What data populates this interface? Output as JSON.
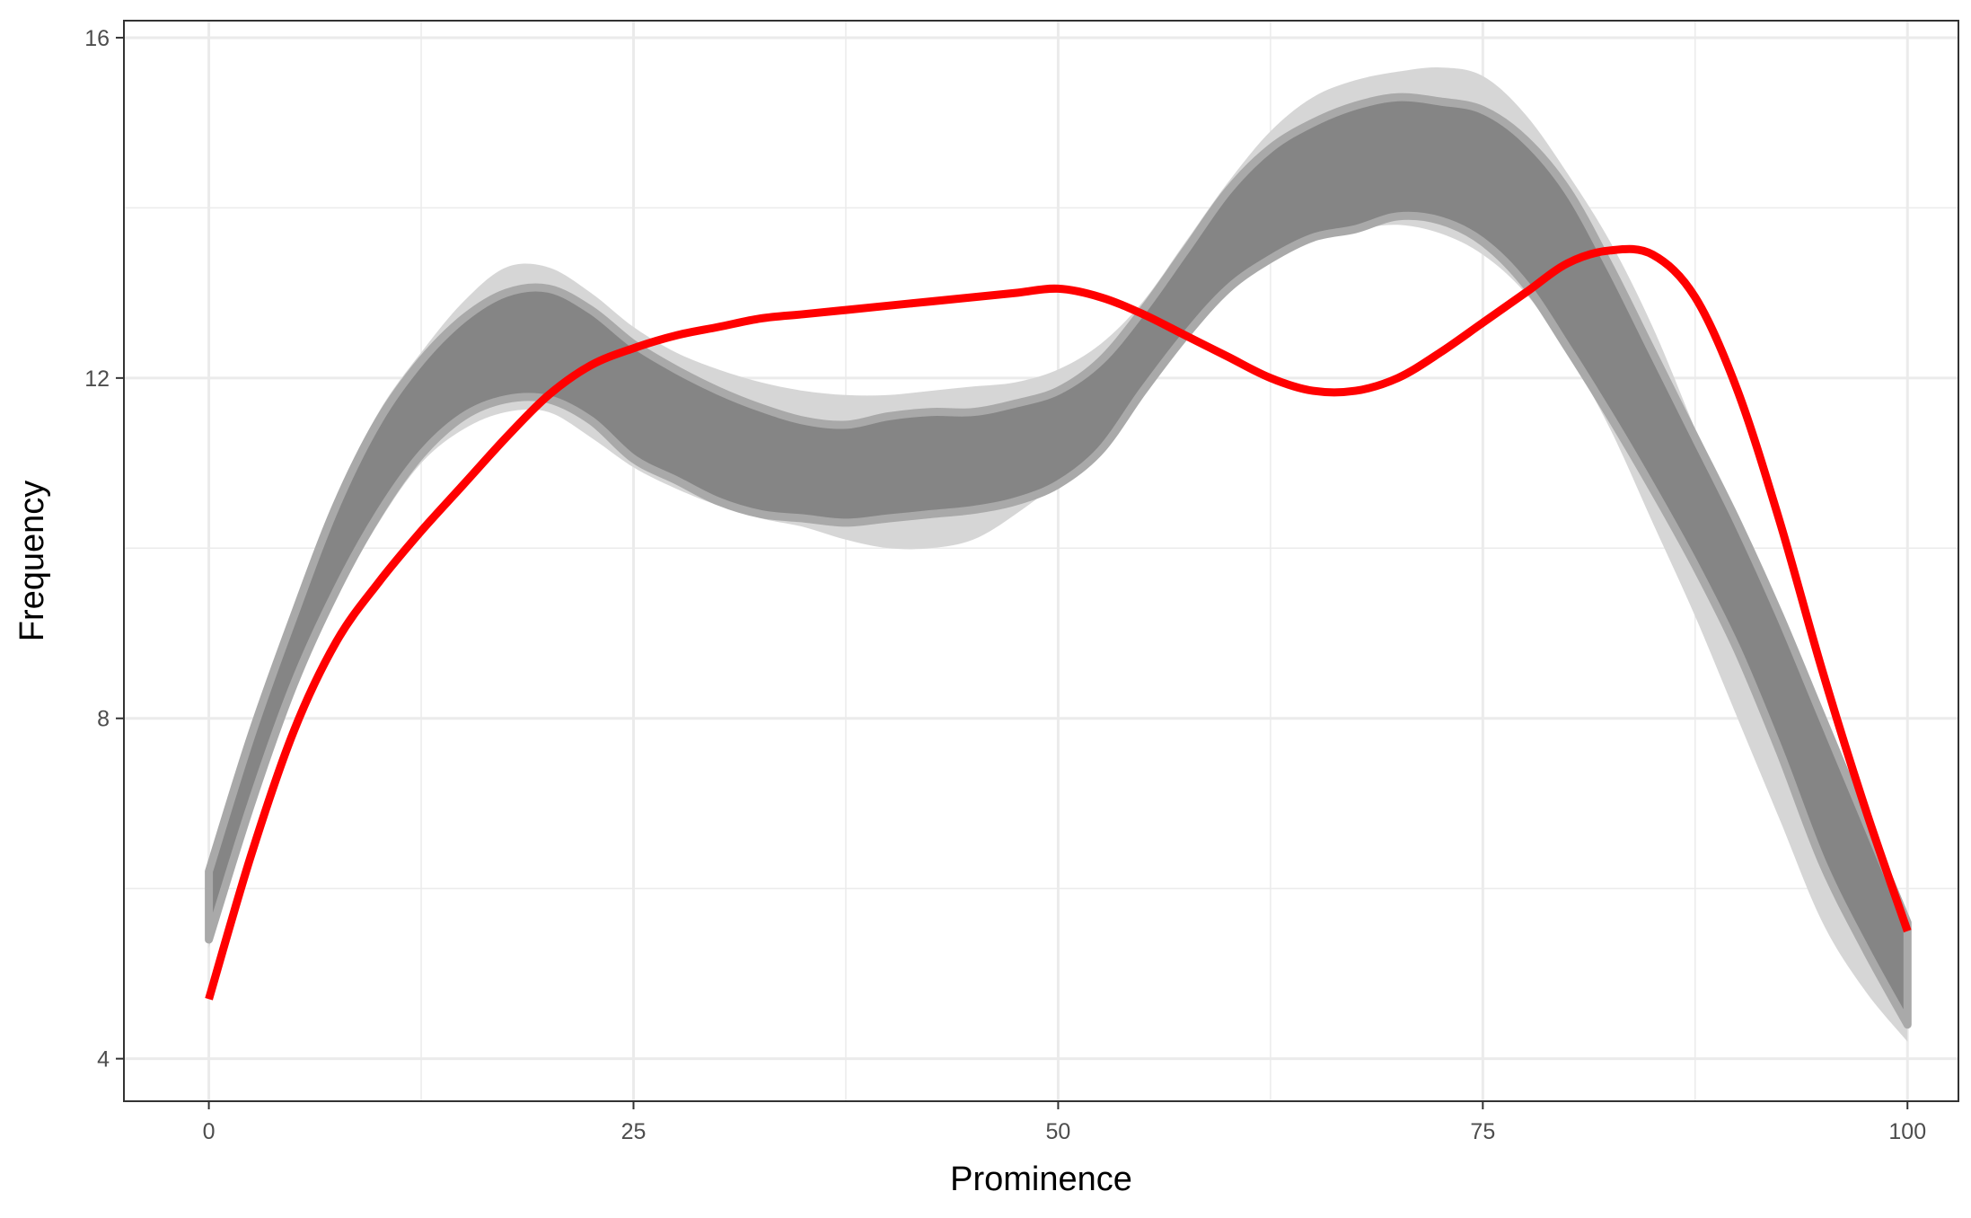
{
  "chart_data": {
    "type": "line",
    "title": "",
    "xlabel": "Prominence",
    "ylabel": "Frequency",
    "xlim": [
      -5,
      103
    ],
    "ylim": [
      3.5,
      16.2
    ],
    "x_ticks": [
      0,
      25,
      50,
      75,
      100
    ],
    "x_tick_labels": [
      "0",
      "25",
      "50",
      "75",
      "100"
    ],
    "y_ticks": [
      4,
      8,
      12,
      16
    ],
    "y_tick_labels": [
      "4",
      "8",
      "12",
      "16"
    ],
    "grid": true,
    "legend": "none",
    "colors": {
      "outer_band": "#d6d6d6",
      "band_edge": "#a9a9a9",
      "inner_band": "#858585",
      "red_line": "#ff0000",
      "panel_border": "#333333",
      "grid": "#ebebeb"
    },
    "x": [
      0,
      2.5,
      5,
      7.5,
      10,
      12.5,
      15,
      17.5,
      20,
      22.5,
      25,
      27.5,
      30,
      32.5,
      35,
      37.5,
      40,
      42.5,
      45,
      47.5,
      50,
      52.5,
      55,
      57.5,
      60,
      62.5,
      65,
      67.5,
      70,
      72.5,
      75,
      77.5,
      80,
      82.5,
      85,
      87.5,
      90,
      92.5,
      95,
      97.5,
      100
    ],
    "series": [
      {
        "name": "",
        "role": "outer-band",
        "upper": [
          6.3,
          7.9,
          9.3,
          10.6,
          11.6,
          12.3,
          12.9,
          13.3,
          13.3,
          13.0,
          12.6,
          12.3,
          12.1,
          11.95,
          11.85,
          11.8,
          11.8,
          11.85,
          11.9,
          11.95,
          12.1,
          12.4,
          12.9,
          13.6,
          14.3,
          14.9,
          15.3,
          15.5,
          15.6,
          15.65,
          15.55,
          15.1,
          14.4,
          13.6,
          12.6,
          11.4,
          10.2,
          9.0,
          7.8,
          6.6,
          5.4
        ],
        "lower": [
          5.3,
          6.9,
          8.3,
          9.4,
          10.3,
          11.0,
          11.4,
          11.6,
          11.6,
          11.3,
          10.95,
          10.7,
          10.5,
          10.35,
          10.25,
          10.1,
          10.0,
          10.0,
          10.1,
          10.4,
          10.8,
          11.4,
          12.2,
          12.9,
          13.4,
          13.6,
          13.7,
          13.75,
          13.8,
          13.7,
          13.45,
          13.0,
          12.3,
          11.4,
          10.3,
          9.2,
          8.0,
          6.8,
          5.6,
          4.8,
          4.2
        ]
      },
      {
        "name": "",
        "role": "inner-band",
        "upper": [
          6.2,
          7.8,
          9.2,
          10.5,
          11.5,
          12.2,
          12.7,
          13.0,
          13.05,
          12.8,
          12.4,
          12.1,
          11.85,
          11.65,
          11.5,
          11.45,
          11.55,
          11.6,
          11.6,
          11.7,
          11.85,
          12.2,
          12.8,
          13.5,
          14.2,
          14.7,
          15.0,
          15.2,
          15.3,
          15.25,
          15.15,
          14.8,
          14.2,
          13.3,
          12.3,
          11.3,
          10.3,
          9.2,
          8.0,
          6.8,
          5.6
        ],
        "lower": [
          5.4,
          7.0,
          8.4,
          9.5,
          10.4,
          11.1,
          11.55,
          11.75,
          11.75,
          11.5,
          11.05,
          10.8,
          10.55,
          10.4,
          10.35,
          10.3,
          10.35,
          10.4,
          10.45,
          10.55,
          10.75,
          11.15,
          11.85,
          12.5,
          13.05,
          13.4,
          13.65,
          13.75,
          13.9,
          13.85,
          13.6,
          13.1,
          12.35,
          11.55,
          10.7,
          9.8,
          8.8,
          7.6,
          6.3,
          5.3,
          4.4
        ]
      },
      {
        "name": "",
        "role": "red-line",
        "y": [
          4.7,
          6.4,
          7.85,
          8.9,
          9.6,
          10.2,
          10.75,
          11.3,
          11.8,
          12.15,
          12.35,
          12.5,
          12.6,
          12.7,
          12.75,
          12.8,
          12.85,
          12.9,
          12.95,
          13.0,
          13.05,
          12.95,
          12.75,
          12.5,
          12.25,
          12.0,
          11.85,
          11.85,
          12.0,
          12.3,
          12.65,
          13.0,
          13.35,
          13.5,
          13.45,
          12.95,
          11.85,
          10.3,
          8.55,
          6.95,
          5.5
        ]
      }
    ]
  }
}
